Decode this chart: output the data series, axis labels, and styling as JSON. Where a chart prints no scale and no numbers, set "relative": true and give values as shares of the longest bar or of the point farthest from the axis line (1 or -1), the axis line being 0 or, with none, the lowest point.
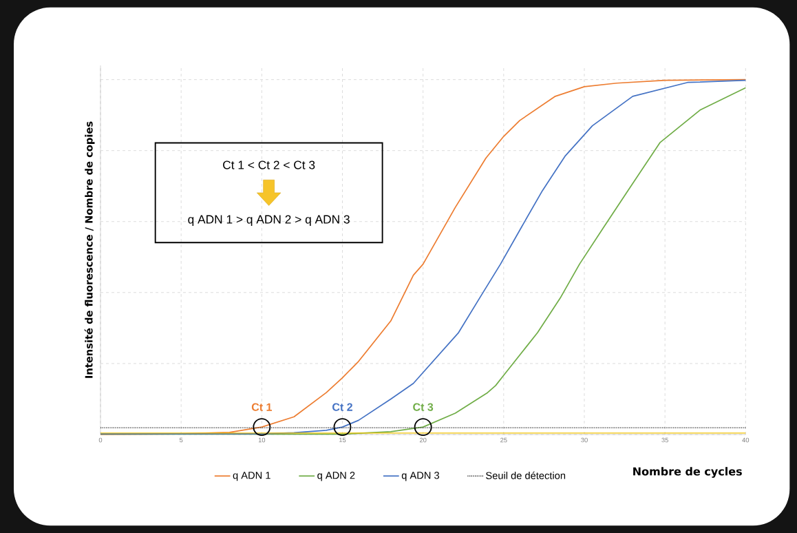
{
  "chart_data": {
    "type": "line",
    "relative": true,
    "xlabel": "Nombre de cycles",
    "ylabel": "Intensité de fluorescence / Nombre de copies",
    "xlim": [
      0,
      40
    ],
    "xticks": [
      0,
      5,
      10,
      15,
      20,
      25,
      30,
      35,
      40
    ],
    "tick_labels": "x",
    "grid": true,
    "legend": "bottom",
    "marker": "none",
    "line_style": "solid",
    "series": [
      {
        "name": "q ADN 1",
        "color": "#ed7d31",
        "x": [
          0,
          5,
          8,
          10,
          12,
          14,
          15,
          16,
          18,
          19.4,
          20,
          22,
          23.9,
          25,
          26,
          28.2,
          30,
          32,
          35,
          40
        ],
        "values": [
          0,
          0.002,
          0.006,
          0.021,
          0.05,
          0.118,
          0.16,
          0.206,
          0.32,
          0.449,
          0.48,
          0.64,
          0.779,
          0.84,
          0.885,
          0.953,
          0.98,
          0.99,
          0.998,
          1
        ]
      },
      {
        "name": "q ADN 2",
        "color": "#70ad47",
        "x": [
          0,
          15,
          18,
          20,
          22,
          24,
          24.5,
          25,
          27.1,
          28.5,
          29.7,
          31.2,
          32.7,
          34.7,
          37.2,
          40
        ],
        "values": [
          0.001,
          0.001,
          0.008,
          0.021,
          0.06,
          0.118,
          0.138,
          0.167,
          0.287,
          0.384,
          0.48,
          0.584,
          0.687,
          0.823,
          0.915,
          0.977
        ]
      },
      {
        "name": "q ADN 3",
        "color": "#4472c4",
        "x": [
          0,
          10,
          12,
          14,
          15,
          16,
          18,
          19.4,
          22.2,
          23.5,
          24.8,
          26.1,
          27.4,
          28.8,
          30.5,
          33,
          36.4,
          40
        ],
        "values": [
          0.002,
          0.002,
          0.005,
          0.012,
          0.021,
          0.04,
          0.1,
          0.144,
          0.287,
          0.384,
          0.48,
          0.584,
          0.687,
          0.784,
          0.87,
          0.953,
          0.992,
          0.998
        ]
      }
    ],
    "ref_lines": [
      {
        "axis": "y",
        "value": 0.019,
        "label": "Seuil de détection",
        "color": "#333333",
        "line_style": "dotted"
      },
      {
        "axis": "y",
        "value": 0.004,
        "color": "#f2c200",
        "line_style": "solid"
      }
    ],
    "annotations": [
      {
        "text": "Ct 1",
        "x": 10,
        "y": 0.021
      },
      {
        "text": "Ct 2",
        "x": 15,
        "y": 0.021
      },
      {
        "text": "Ct 3",
        "x": 20,
        "y": 0.021
      },
      "Ct 1 < Ct 2 < Ct 3",
      "q ADN 1 > q ADN 2 > q ADN 3"
    ]
  }
}
